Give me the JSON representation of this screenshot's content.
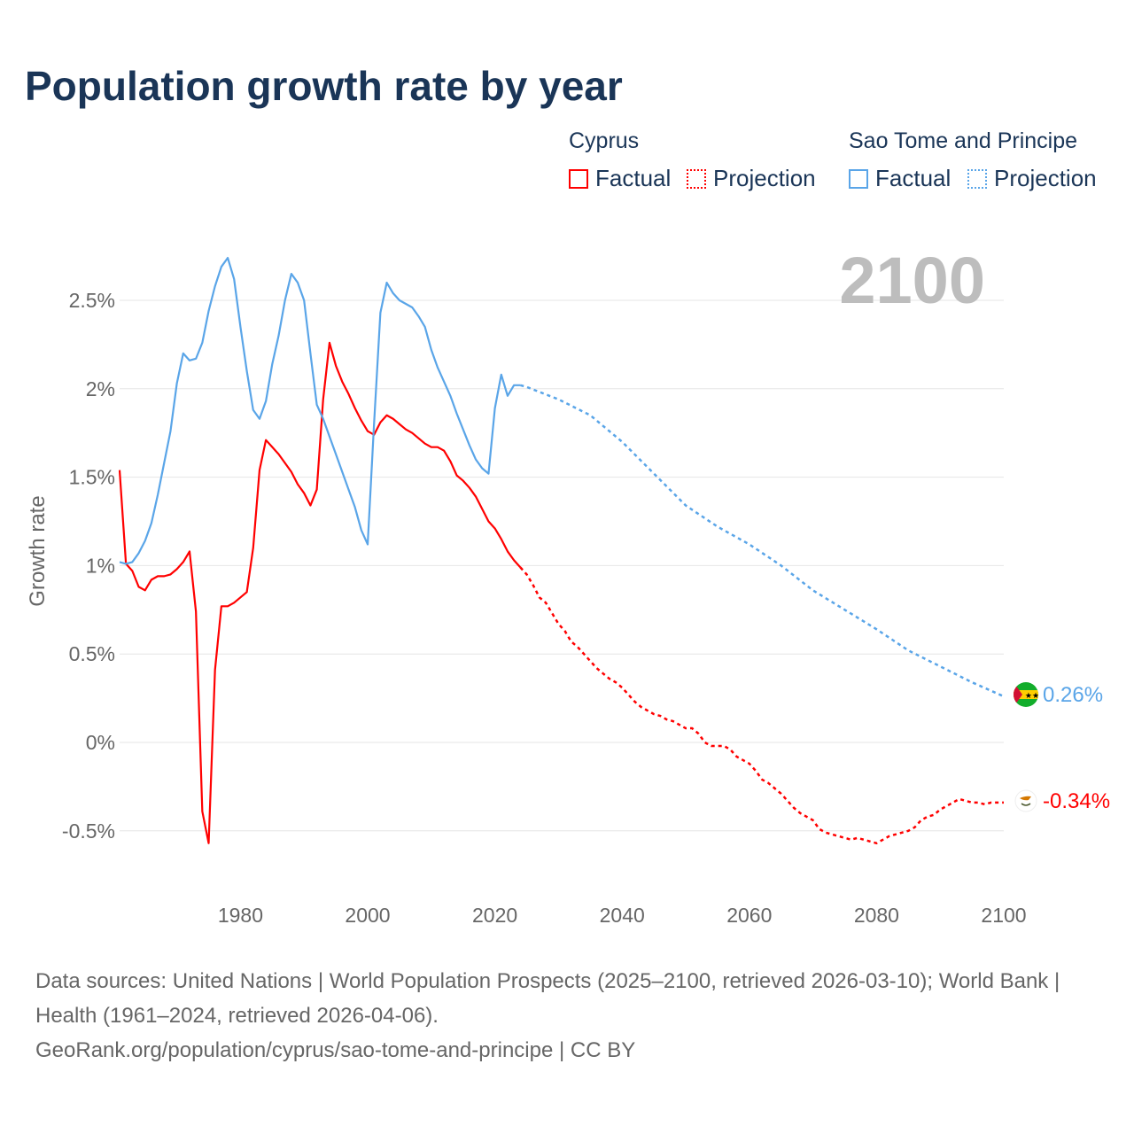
{
  "title": "Population growth rate by year",
  "legend": {
    "groups": [
      {
        "name": "Cyprus",
        "factual": "Factual",
        "projection": "Projection",
        "color": "#ff0000"
      },
      {
        "name": "Sao Tome and Principe",
        "factual": "Factual",
        "projection": "Projection",
        "color": "#5aa5e8"
      }
    ]
  },
  "footer": {
    "line1": "Data sources: United Nations | World Population Prospects (2025–2100, retrieved 2026-03-10); World Bank | Health (1961–2024, retrieved 2026-04-06).",
    "line2": "GeoRank.org/population/cyprus/sao-tome-and-principe | CC BY"
  },
  "chart_data": {
    "type": "line",
    "title": "Population growth rate by year",
    "ylabel": "Growth rate",
    "xlabel": "",
    "year_label": "2100",
    "xlim": [
      1961,
      2100
    ],
    "ylim": [
      -0.7,
      2.85
    ],
    "xticks": [
      1980,
      2000,
      2020,
      2040,
      2060,
      2080,
      2100
    ],
    "xtick_labels": [
      "1980",
      "2000",
      "2020",
      "2040",
      "2060",
      "2080",
      "2100"
    ],
    "yticks": [
      -0.5,
      0,
      0.5,
      1,
      1.5,
      2,
      2.5
    ],
    "ytick_labels": [
      "-0.5%",
      "0%",
      "0.5%",
      "1%",
      "1.5%",
      "2%",
      "2.5%"
    ],
    "grid": true,
    "series": [
      {
        "name": "Cyprus",
        "color": "#ff0000",
        "end_label": "-0.34%",
        "factual": {
          "x_start": 1961,
          "values": [
            1.54,
            1.01,
            0.97,
            0.88,
            0.86,
            0.92,
            0.94,
            0.94,
            0.95,
            0.98,
            1.02,
            1.08,
            0.74,
            -0.39,
            -0.57,
            0.41,
            0.77,
            0.77,
            0.79,
            0.82,
            0.85,
            1.1,
            1.54,
            1.71,
            1.67,
            1.63,
            1.58,
            1.53,
            1.46,
            1.41,
            1.34,
            1.43,
            1.94,
            2.26,
            2.13,
            2.04,
            1.97,
            1.89,
            1.82,
            1.76,
            1.74,
            1.81,
            1.85,
            1.83,
            1.8,
            1.77,
            1.75,
            1.72,
            1.69,
            1.67,
            1.67,
            1.65,
            1.59,
            1.51,
            1.48,
            1.44,
            1.39,
            1.32,
            1.25,
            1.21,
            1.15,
            1.08,
            1.03,
            0.99
          ]
        },
        "projection": {
          "x_start": 2024,
          "values": [
            0.99,
            0.95,
            0.89,
            0.82,
            0.79,
            0.73,
            0.67,
            0.63,
            0.57,
            0.54,
            0.5,
            0.46,
            0.42,
            0.39,
            0.36,
            0.34,
            0.31,
            0.27,
            0.23,
            0.2,
            0.18,
            0.16,
            0.15,
            0.13,
            0.12,
            0.1,
            0.08,
            0.08,
            0.05,
            0.0,
            -0.02,
            -0.02,
            -0.02,
            -0.04,
            -0.08,
            -0.1,
            -0.12,
            -0.16,
            -0.21,
            -0.23,
            -0.26,
            -0.29,
            -0.33,
            -0.37,
            -0.4,
            -0.42,
            -0.44,
            -0.49,
            -0.51,
            -0.52,
            -0.53,
            -0.54,
            -0.55,
            -0.54,
            -0.55,
            -0.56,
            -0.57,
            -0.55,
            -0.53,
            -0.52,
            -0.51,
            -0.5,
            -0.48,
            -0.44,
            -0.42,
            -0.41,
            -0.38,
            -0.36,
            -0.34,
            -0.32,
            -0.33,
            -0.34,
            -0.34,
            -0.35,
            -0.34,
            -0.34,
            -0.34
          ]
        }
      },
      {
        "name": "Sao Tome and Principe",
        "color": "#5aa5e8",
        "end_label": "0.26%",
        "factual": {
          "x_start": 1961,
          "values": [
            1.02,
            1.01,
            1.02,
            1.07,
            1.14,
            1.24,
            1.4,
            1.58,
            1.76,
            2.03,
            2.2,
            2.16,
            2.17,
            2.26,
            2.44,
            2.58,
            2.69,
            2.74,
            2.62,
            2.35,
            2.1,
            1.88,
            1.83,
            1.93,
            2.14,
            2.3,
            2.5,
            2.65,
            2.6,
            2.5,
            2.2,
            1.91,
            1.83,
            1.73,
            1.63,
            1.53,
            1.43,
            1.33,
            1.2,
            1.12,
            1.8,
            2.43,
            2.6,
            2.54,
            2.5,
            2.48,
            2.46,
            2.41,
            2.35,
            2.22,
            2.12,
            2.04,
            1.96,
            1.86,
            1.77,
            1.68,
            1.6,
            1.55,
            1.52,
            1.89,
            2.08,
            1.96,
            2.02,
            2.02
          ]
        },
        "projection": {
          "x": [
            2024,
            2025,
            2030,
            2035,
            2040,
            2045,
            2050,
            2055,
            2060,
            2065,
            2070,
            2075,
            2080,
            2085,
            2090,
            2095,
            2100
          ],
          "values": [
            2.02,
            2.01,
            1.94,
            1.85,
            1.7,
            1.52,
            1.34,
            1.22,
            1.12,
            1.0,
            0.86,
            0.75,
            0.64,
            0.52,
            0.43,
            0.34,
            0.26
          ]
        }
      }
    ]
  }
}
